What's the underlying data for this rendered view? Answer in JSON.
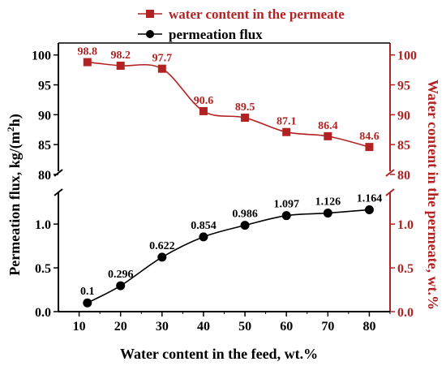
{
  "colors": {
    "water": "#b22222",
    "flux": "#000000",
    "axis_left": "#000000",
    "axis_right": "#b22222"
  },
  "chart_data": {
    "type": "line",
    "x": [
      12,
      20,
      30,
      40,
      50,
      60,
      70,
      80
    ],
    "xlabel": "Water content in the feed, wt.%",
    "ylabel_left": "Permeation flux, kg/(m",
    "ylabel_left_sup": "2",
    "ylabel_left_end": "h)",
    "ylabel_right": "Water content in the permeate, wt.%",
    "x_ticks": [
      "10",
      "20",
      "30",
      "40",
      "50",
      "60",
      "70",
      "80"
    ],
    "xlim": [
      5,
      85
    ],
    "legend_position": "top",
    "series": [
      {
        "name": "water content in the permeate",
        "axis": "right",
        "marker": "square",
        "values": [
          98.8,
          98.2,
          97.7,
          90.6,
          89.5,
          87.1,
          86.4,
          84.6
        ],
        "labels": [
          "98.8",
          "98.2",
          "97.7",
          "90.6",
          "89.5",
          "87.1",
          "86.4",
          "84.6"
        ],
        "ylim": [
          80,
          102
        ],
        "ticks": [
          "80",
          "85",
          "90",
          "95",
          "100"
        ]
      },
      {
        "name": "permeation flux",
        "axis": "left",
        "marker": "circle",
        "values": [
          0.1,
          0.296,
          0.622,
          0.854,
          0.986,
          1.097,
          1.126,
          1.164
        ],
        "labels": [
          "0.1",
          "0.296",
          "0.622",
          "0.854",
          "0.986",
          "1.097",
          "1.126",
          "1.164"
        ],
        "ylim": [
          0,
          1.4
        ],
        "ticks": [
          "0.0",
          "0.5",
          "1.0"
        ]
      }
    ],
    "left_upper_ticks": [
      "80",
      "85",
      "90",
      "95",
      "100"
    ],
    "axis_break": true
  }
}
